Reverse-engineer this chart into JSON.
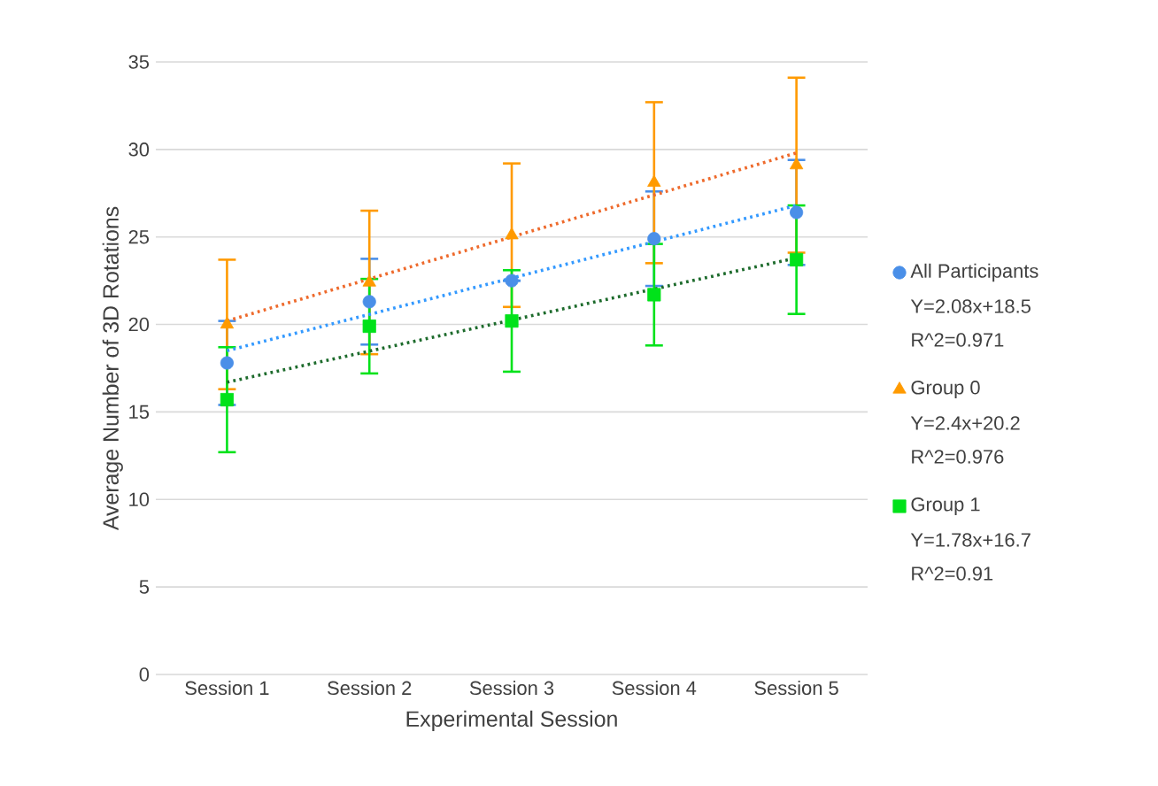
{
  "chart_data": {
    "type": "scatter",
    "xlabel": "Experimental Session",
    "ylabel": "Average Number of 3D Rotations",
    "categories": [
      "Session 1",
      "Session 2",
      "Session 3",
      "Session 4",
      "Session 5"
    ],
    "ylim": [
      0,
      35
    ],
    "yticks": [
      0,
      5,
      10,
      15,
      20,
      25,
      30,
      35
    ],
    "grid": "y",
    "legend": "right",
    "series": [
      {
        "name": "All Participants",
        "color": "#4a8fe8",
        "marker": "circle",
        "values": [
          17.8,
          21.3,
          22.5,
          24.9,
          26.4
        ],
        "errors": [
          2.4,
          2.45,
          null,
          2.7,
          3.0
        ]
      },
      {
        "name": "Group 0",
        "color": "#ff9a00",
        "marker": "triangle",
        "values": [
          20.0,
          22.4,
          25.1,
          28.1,
          29.1
        ],
        "errors": [
          3.7,
          4.1,
          4.1,
          4.6,
          5.0
        ]
      },
      {
        "name": "Group 1",
        "color": "#00e21a",
        "marker": "square",
        "values": [
          15.7,
          19.9,
          20.2,
          21.7,
          23.7
        ],
        "errors": [
          3.0,
          2.7,
          2.9,
          2.9,
          3.1
        ]
      },
      {
        "type": "line",
        "line_style": "dotted",
        "marker": "none",
        "color": "#3399ff",
        "x": [
          "Session 1",
          "Session 5"
        ],
        "values": [
          18.5,
          26.8
        ]
      },
      {
        "type": "line",
        "line_style": "dotted",
        "marker": "none",
        "color": "#ee6a2c",
        "x": [
          "Session 1",
          "Session 5"
        ],
        "values": [
          20.2,
          29.8
        ]
      },
      {
        "type": "line",
        "line_style": "dotted",
        "marker": "none",
        "color": "#1d6b2c",
        "x": [
          "Session 1",
          "Session 5"
        ],
        "values": [
          16.7,
          23.8
        ]
      }
    ],
    "annotations": [
      "Y=2.08x+18.5",
      "R^2=0.971",
      "Y=2.4x+20.2",
      "R^2=0.976",
      "Y=1.78x+16.7",
      "R^2=0.91"
    ]
  }
}
